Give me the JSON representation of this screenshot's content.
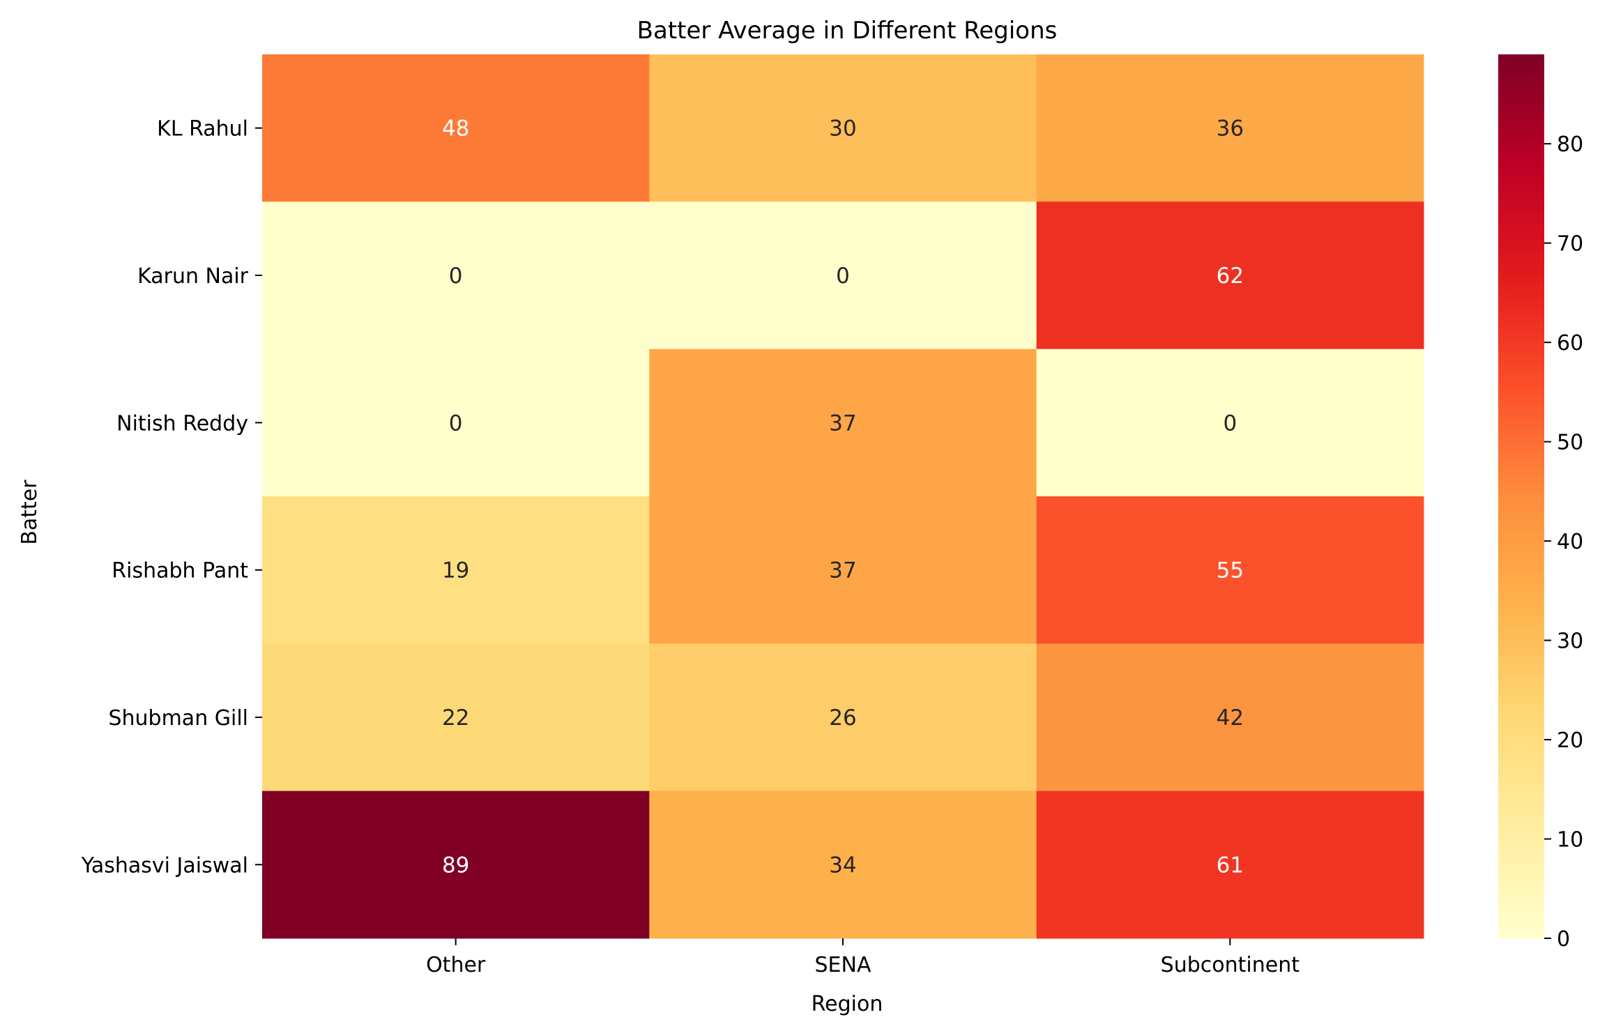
{
  "chart_data": {
    "type": "heatmap",
    "title": "Batter Average in Different Regions",
    "xlabel": "Region",
    "ylabel": "Batter",
    "x_categories": [
      "Other",
      "SENA",
      "Subcontinent"
    ],
    "y_categories": [
      "KL Rahul",
      "Karun Nair",
      "Nitish Reddy",
      "Rishabh Pant",
      "Shubman Gill",
      "Yashasvi Jaiswal"
    ],
    "values": [
      [
        48,
        30,
        36
      ],
      [
        0,
        0,
        62
      ],
      [
        0,
        37,
        0
      ],
      [
        19,
        37,
        55
      ],
      [
        22,
        26,
        42
      ],
      [
        89,
        34,
        61
      ]
    ],
    "colormap": "YlOrRd",
    "value_range": [
      0,
      89
    ],
    "colorbar_ticks": [
      0,
      10,
      20,
      30,
      40,
      50,
      60,
      70,
      80
    ],
    "colors": {
      "stops": [
        "#ffffcc",
        "#ffeda0",
        "#fed976",
        "#feb24c",
        "#fd8d3c",
        "#fc4e2a",
        "#e31a1c",
        "#bd0026",
        "#800026"
      ],
      "text_dark": "#262626",
      "text_light": "#ffffff"
    }
  }
}
